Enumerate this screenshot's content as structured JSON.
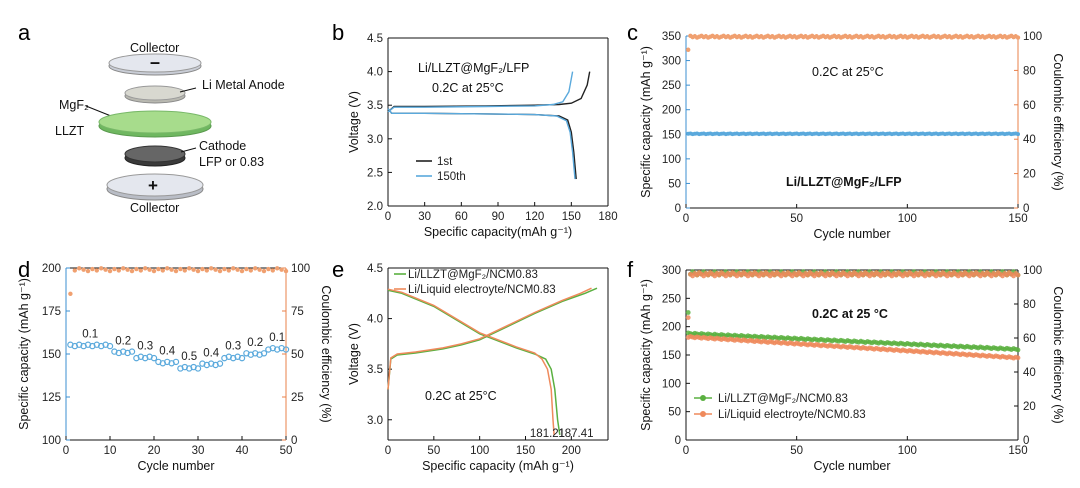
{
  "panels": {
    "a": {
      "letter": "a",
      "labels": {
        "collector_top": "Collector",
        "anode": "Li Metal Anode",
        "mgf2": "MgF₂",
        "llzt": "LLZT",
        "cathode": "Cathode",
        "cathode_sub": "LFP or 0.83",
        "collector_bottom": "Collector"
      }
    },
    "b": {
      "letter": "b",
      "ann1": "Li/LLZT@MgF₂/LFP",
      "ann2": "0.2C at 25°C"
    },
    "c": {
      "letter": "c",
      "ann1": "0.2C at 25°C",
      "ann2": "Li/LLZT@MgF₂/LFP"
    },
    "d": {
      "letter": "d"
    },
    "e": {
      "letter": "e",
      "ann1": "0.2C at 25°C"
    },
    "f": {
      "letter": "f",
      "ann1": "0.2C at 25 °C"
    }
  },
  "chart_data": [
    {
      "panel": "b",
      "type": "line",
      "xlabel": "Specific capacity(mAh g⁻¹)",
      "ylabel": "Voltage (V)",
      "xlim": [
        0,
        180
      ],
      "ylim": [
        2.0,
        4.5
      ],
      "xticks": [
        "0",
        "30",
        "60",
        "90",
        "120",
        "150",
        "180"
      ],
      "yticks": [
        "2.0",
        "2.5",
        "3.0",
        "3.5",
        "4.0",
        "4.5"
      ],
      "legend": [
        "1st",
        "150th"
      ],
      "series": [
        {
          "name": "1st",
          "color": "#222222",
          "charge": [
            [
              0,
              3.4
            ],
            [
              5,
              3.48
            ],
            [
              30,
              3.48
            ],
            [
              80,
              3.49
            ],
            [
              120,
              3.5
            ],
            [
              140,
              3.51
            ],
            [
              150,
              3.53
            ],
            [
              158,
              3.6
            ],
            [
              163,
              3.8
            ],
            [
              165,
              4.0
            ]
          ],
          "discharge": [
            [
              0,
              3.45
            ],
            [
              3,
              3.38
            ],
            [
              30,
              3.38
            ],
            [
              80,
              3.37
            ],
            [
              120,
              3.36
            ],
            [
              140,
              3.34
            ],
            [
              147,
              3.28
            ],
            [
              150,
              3.1
            ],
            [
              152,
              2.8
            ],
            [
              154,
              2.4
            ]
          ]
        },
        {
          "name": "150th",
          "color": "#5aa9dc",
          "charge": [
            [
              0,
              3.4
            ],
            [
              5,
              3.47
            ],
            [
              30,
              3.47
            ],
            [
              80,
              3.48
            ],
            [
              120,
              3.49
            ],
            [
              135,
              3.51
            ],
            [
              143,
              3.55
            ],
            [
              148,
              3.7
            ],
            [
              151,
              4.0
            ]
          ],
          "discharge": [
            [
              0,
              3.45
            ],
            [
              3,
              3.38
            ],
            [
              30,
              3.38
            ],
            [
              80,
              3.37
            ],
            [
              120,
              3.36
            ],
            [
              138,
              3.34
            ],
            [
              146,
              3.27
            ],
            [
              149,
              3.1
            ],
            [
              151,
              2.8
            ],
            [
              153,
              2.4
            ]
          ]
        }
      ]
    },
    {
      "panel": "c",
      "type": "scatter",
      "xlabel": "Cycle number",
      "ylabel": "Specific capacity (mAh g⁻¹)",
      "y2label": "Coulombic efficiency (%)",
      "xlim": [
        0,
        150
      ],
      "ylim": [
        0,
        350
      ],
      "y2lim": [
        0,
        100
      ],
      "xticks": [
        "0",
        "50",
        "100",
        "150"
      ],
      "yticks": [
        "0",
        "50",
        "100",
        "150",
        "200",
        "250",
        "300",
        "350"
      ],
      "y2ticks": [
        "0",
        "20",
        "40",
        "60",
        "80",
        "100"
      ],
      "capacity": {
        "color": "#5aa9dc",
        "value": 151,
        "start_cycle": 1,
        "end_cycle": 150
      },
      "efficiency": {
        "color": "#f0a070",
        "first_cycle_value": 92,
        "value": 99.6,
        "start_cycle": 1,
        "end_cycle": 150
      }
    },
    {
      "panel": "d",
      "type": "scatter",
      "xlabel": "Cycle number",
      "ylabel": "Specific capacity (mAh g⁻¹)",
      "y2label": "Coulombic efficiency (%)",
      "xlim": [
        0,
        50
      ],
      "ylim": [
        100,
        200
      ],
      "y2lim": [
        0,
        100
      ],
      "xticks": [
        "0",
        "10",
        "20",
        "30",
        "40",
        "50"
      ],
      "yticks": [
        "100",
        "125",
        "150",
        "175",
        "200"
      ],
      "y2ticks": [
        "0",
        "25",
        "50",
        "75",
        "100"
      ],
      "rates": [
        {
          "label": "0.1",
          "cycles": [
            1,
            10
          ],
          "capacity": 155
        },
        {
          "label": "0.2",
          "cycles": [
            11,
            15
          ],
          "capacity": 151
        },
        {
          "label": "0.3",
          "cycles": [
            16,
            20
          ],
          "capacity": 148
        },
        {
          "label": "0.4",
          "cycles": [
            21,
            25
          ],
          "capacity": 145
        },
        {
          "label": "0.5",
          "cycles": [
            26,
            30
          ],
          "capacity": 142
        },
        {
          "label": "0.4",
          "cycles": [
            31,
            35
          ],
          "capacity": 144
        },
        {
          "label": "0.3",
          "cycles": [
            36,
            40
          ],
          "capacity": 148
        },
        {
          "label": "0.2",
          "cycles": [
            41,
            45
          ],
          "capacity": 150
        },
        {
          "label": "0.1",
          "cycles": [
            46,
            50
          ],
          "capacity": 153
        }
      ],
      "capacity_color": "#5aa9dc",
      "efficiency": {
        "color": "#f0a070",
        "first_cycle_value": 85,
        "value": 99
      }
    },
    {
      "panel": "e",
      "type": "line",
      "xlabel": "Specific capacity (mAh g⁻¹)",
      "ylabel": "Voltage (V)",
      "xlim": [
        0,
        240
      ],
      "ylim": [
        2.8,
        4.5
      ],
      "xticks": [
        "0",
        "50",
        "100",
        "150",
        "200"
      ],
      "yticks": [
        "3.0",
        "3.5",
        "4.0",
        "4.5"
      ],
      "legend": [
        "Li/LLZT@MgF₂/NCM0.83",
        "Li/Liquid electroyte/NCM0.83"
      ],
      "endpoint_labels": [
        "181.21",
        "187.41"
      ],
      "series": [
        {
          "name": "Li/LLZT@MgF₂/NCM0.83",
          "color": "#5ab040",
          "charge": [
            [
              0,
              3.3
            ],
            [
              3,
              3.6
            ],
            [
              10,
              3.64
            ],
            [
              30,
              3.66
            ],
            [
              60,
              3.7
            ],
            [
              80,
              3.74
            ],
            [
              100,
              3.79
            ],
            [
              130,
              3.92
            ],
            [
              160,
              4.05
            ],
            [
              190,
              4.17
            ],
            [
              215,
              4.25
            ],
            [
              228,
              4.3
            ]
          ],
          "discharge": [
            [
              0,
              4.28
            ],
            [
              15,
              4.25
            ],
            [
              50,
              4.12
            ],
            [
              100,
              3.85
            ],
            [
              140,
              3.71
            ],
            [
              160,
              3.65
            ],
            [
              172,
              3.6
            ],
            [
              178,
              3.5
            ],
            [
              182,
              3.3
            ],
            [
              185,
              3.0
            ],
            [
              187.41,
              2.85
            ]
          ]
        },
        {
          "name": "Li/Liquid electroyte/NCM0.83",
          "color": "#ef8a5c",
          "charge": [
            [
              0,
              3.3
            ],
            [
              3,
              3.61
            ],
            [
              10,
              3.65
            ],
            [
              30,
              3.67
            ],
            [
              60,
              3.71
            ],
            [
              80,
              3.75
            ],
            [
              100,
              3.8
            ],
            [
              130,
              3.93
            ],
            [
              160,
              4.06
            ],
            [
              190,
              4.18
            ],
            [
              210,
              4.25
            ],
            [
              222,
              4.3
            ]
          ],
          "discharge": [
            [
              0,
              4.29
            ],
            [
              15,
              4.26
            ],
            [
              50,
              4.13
            ],
            [
              100,
              3.86
            ],
            [
              140,
              3.72
            ],
            [
              160,
              3.66
            ],
            [
              168,
              3.6
            ],
            [
              174,
              3.5
            ],
            [
              178,
              3.3
            ],
            [
              180,
              3.0
            ],
            [
              181.21,
              2.85
            ]
          ]
        }
      ]
    },
    {
      "panel": "f",
      "type": "scatter",
      "xlabel": "Cycle number",
      "ylabel": "Specific capacity (mAh g⁻¹)",
      "y2label": "Coulombic efficiency (%)",
      "xlim": [
        0,
        150
      ],
      "ylim": [
        0,
        300
      ],
      "y2lim": [
        0,
        100
      ],
      "xticks": [
        "0",
        "50",
        "100",
        "150"
      ],
      "yticks": [
        "0",
        "50",
        "100",
        "150",
        "200",
        "250",
        "300"
      ],
      "y2ticks": [
        "0",
        "20",
        "40",
        "60",
        "80",
        "100"
      ],
      "legend": [
        "Li/LLZT@MgF₂/NCM0.83",
        "Li/Liquid electroyte/NCM0.83"
      ],
      "series": [
        {
          "name": "Li/LLZT@MgF₂/NCM0.83",
          "color": "#5ab040",
          "capacity_start": 188,
          "capacity_end": 160,
          "efficiency_first": 75,
          "efficiency": 98
        },
        {
          "name": "Li/Liquid electroyte/NCM0.83",
          "color": "#ef8a5c",
          "capacity_start": 182,
          "capacity_end": 145,
          "efficiency_first": 72,
          "efficiency": 97.5
        }
      ]
    }
  ]
}
